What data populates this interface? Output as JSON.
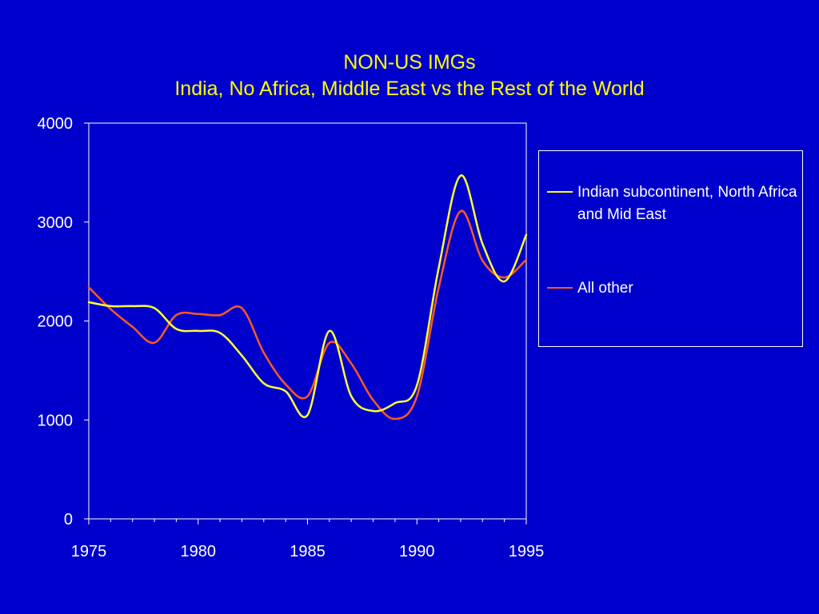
{
  "colors": {
    "background": "#0000cc",
    "title": "#ffff00",
    "axis": "#ffffff",
    "series_indian": "#ffff33",
    "series_other": "#ff5a1e"
  },
  "chart_data": {
    "type": "line",
    "title": "NON-US IMGs",
    "subtitle": "India, No Africa, Middle East vs the Rest of the World",
    "xlabel": "",
    "ylabel": "",
    "xlim": [
      1975,
      1995
    ],
    "ylim": [
      0,
      4000
    ],
    "xticks": [
      "1975",
      "1980",
      "1985",
      "1990",
      "1995"
    ],
    "yticks": [
      "0",
      "1000",
      "2000",
      "3000",
      "4000"
    ],
    "grid": false,
    "legend_position": "right",
    "series": [
      {
        "name": "Indian subcontinent, North Africa and Mid East",
        "color": "#ffff33",
        "x": [
          1975,
          1976,
          1977,
          1978,
          1979,
          1980,
          1981,
          1982,
          1983,
          1984,
          1985,
          1986,
          1987,
          1988,
          1989,
          1990,
          1991,
          1992,
          1993,
          1994,
          1995
        ],
        "y": [
          2190,
          2150,
          2150,
          2130,
          1920,
          1900,
          1880,
          1650,
          1370,
          1290,
          1050,
          1900,
          1240,
          1090,
          1170,
          1350,
          2540,
          3470,
          2780,
          2400,
          2870
        ]
      },
      {
        "name": "All other",
        "color": "#ff5a1e",
        "x": [
          1975,
          1976,
          1977,
          1978,
          1979,
          1980,
          1981,
          1982,
          1983,
          1984,
          1985,
          1986,
          1987,
          1988,
          1989,
          1990,
          1991,
          1992,
          1993,
          1994,
          1995
        ],
        "y": [
          2340,
          2120,
          1940,
          1780,
          2060,
          2070,
          2060,
          2130,
          1680,
          1360,
          1240,
          1780,
          1570,
          1200,
          1010,
          1240,
          2340,
          3110,
          2610,
          2440,
          2620
        ]
      }
    ]
  }
}
